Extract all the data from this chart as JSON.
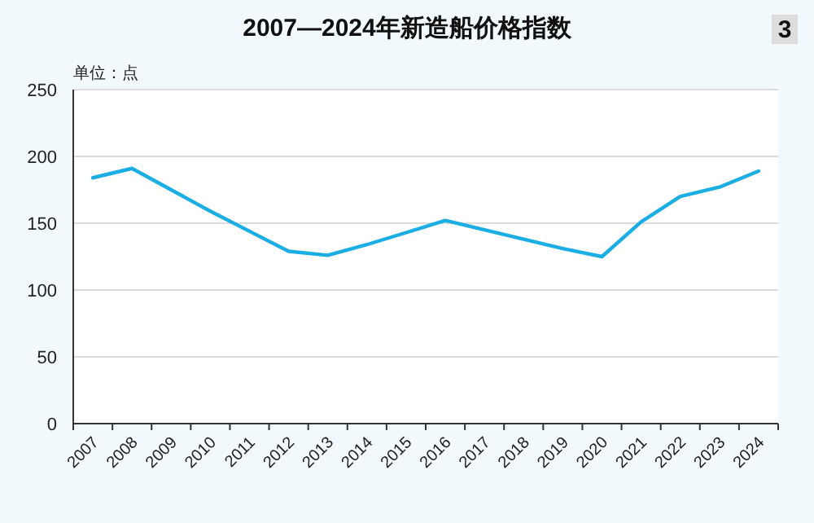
{
  "chart_data": {
    "type": "line",
    "title": "2007—2024年新造船价格指数",
    "ylabel": "单位：点",
    "annotations": [
      "3"
    ],
    "categories": [
      "2007",
      "2008",
      "2009",
      "2010",
      "2011",
      "2012",
      "2013",
      "2014",
      "2015",
      "2016",
      "2017",
      "2018",
      "2019",
      "2020",
      "2021",
      "2022",
      "2023",
      "2024"
    ],
    "series": [
      {
        "color": "#1aaee5",
        "values": [
          184,
          191,
          175,
          159,
          144,
          129,
          126,
          134,
          143,
          152,
          145,
          138,
          131,
          125,
          151,
          170,
          177,
          189
        ]
      }
    ],
    "ylim": [
      0,
      250
    ],
    "yticks": [
      0,
      50,
      100,
      150,
      200,
      250
    ],
    "grid": "y",
    "marker": "none",
    "line_style": "solid"
  }
}
